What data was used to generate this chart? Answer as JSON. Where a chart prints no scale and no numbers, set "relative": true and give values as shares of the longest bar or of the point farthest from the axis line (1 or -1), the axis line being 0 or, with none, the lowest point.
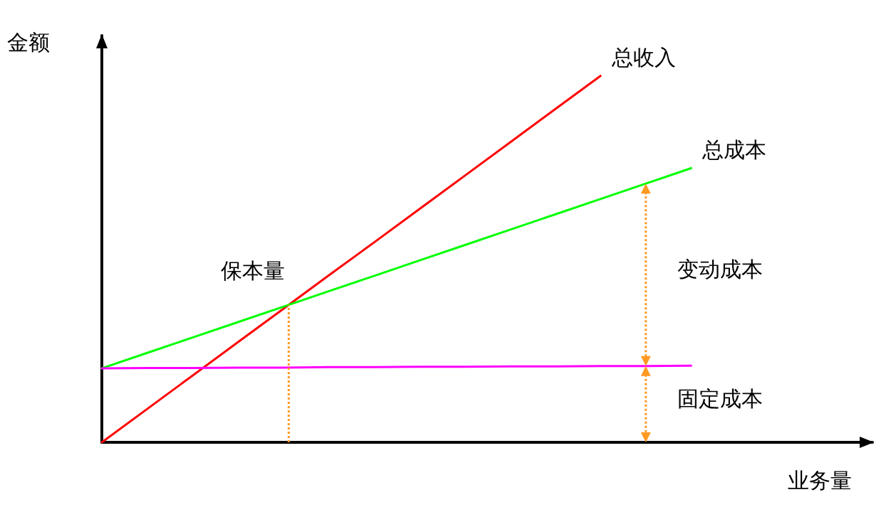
{
  "chart_data": {
    "type": "line",
    "relative": true,
    "xlabel": "业务量",
    "ylabel": "金额",
    "marker": "none",
    "line_style": "solid",
    "categories": [
      null,
      null,
      null,
      null,
      null,
      null,
      null,
      null,
      null,
      null,
      null,
      null,
      null,
      null,
      null,
      null,
      null,
      null
    ],
    "series": [
      {
        "name": "总收入",
        "color": "#ff0000",
        "values": [
          0,
          0.091,
          0.182,
          0.273,
          0.364,
          0.455,
          0.545,
          0.636,
          0.727,
          0.818,
          0.909,
          1,
          null,
          null,
          null,
          null,
          null,
          null
        ]
      },
      {
        "name": "总成本",
        "color": "#00ff00",
        "values": [
          0.202,
          0.244,
          0.286,
          0.328,
          0.37,
          0.412,
          0.454,
          0.496,
          0.538,
          0.58,
          0.622,
          0.664,
          0.706,
          0.748,
          null,
          null,
          null,
          null
        ]
      },
      {
        "color": "#ff00ff",
        "values": [
          0.202,
          0.203,
          0.203,
          0.204,
          0.204,
          0.205,
          0.205,
          0.206,
          0.206,
          0.207,
          0.207,
          0.208,
          0.208,
          0.209,
          null,
          null,
          null,
          null
        ]
      }
    ],
    "annotations": [
      "保本量",
      "变动成本",
      "固定成本"
    ]
  }
}
